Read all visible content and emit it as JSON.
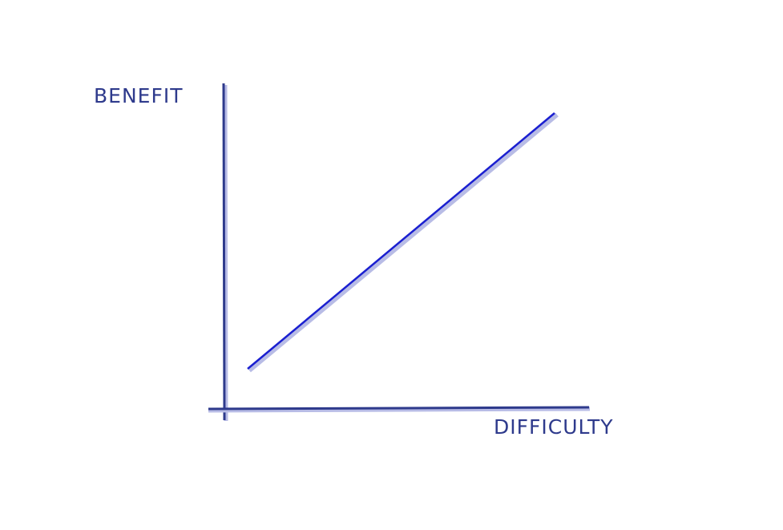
{
  "axes": {
    "y_label": "BENEFIT",
    "x_label": "DIFFICULTY"
  }
}
